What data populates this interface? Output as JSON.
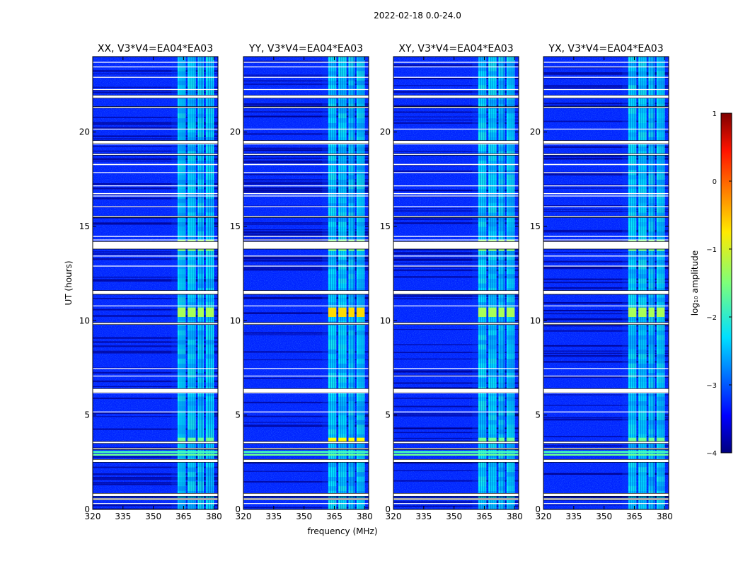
{
  "chart_data": {
    "type": "heatmap",
    "suptitle": "2022-02-18 0.0-24.0",
    "xlabel": "frequency (MHz)",
    "ylabel": "UT (hours)",
    "xlim": [
      320,
      382
    ],
    "ylim": [
      0,
      24
    ],
    "xticks": [
      320,
      335,
      350,
      365,
      380
    ],
    "yticks": [
      0,
      5,
      10,
      15,
      20
    ],
    "panels": [
      {
        "title": "XX, V3*V4=EA04*EA03",
        "pol": "XX"
      },
      {
        "title": "YY, V3*V4=EA04*EA03",
        "pol": "YY"
      },
      {
        "title": "XY, V3*V4=EA04*EA03",
        "pol": "XY"
      },
      {
        "title": "YX, V3*V4=EA04*EA03",
        "pol": "YX"
      }
    ],
    "colorbar": {
      "label": "log₁₀ amplitude",
      "min": -4,
      "max": 1,
      "ticks": [
        1,
        0,
        -1,
        -2,
        -3,
        -4
      ],
      "tick_labels": [
        "1",
        "0",
        "−1",
        "−2",
        "−3",
        "−4"
      ],
      "colormap": "jet"
    },
    "background_log10_amplitude": -3.2,
    "signal_band_mhz": [
      362,
      380
    ],
    "signal_subbands_mhz": [
      [
        362,
        366
      ],
      [
        367,
        371
      ],
      [
        372,
        375
      ],
      [
        376,
        380
      ]
    ],
    "flagged_ut_hours": [
      [
        0.5,
        0.6
      ],
      [
        0.7,
        0.85
      ],
      [
        2.5,
        2.65
      ],
      [
        3.2,
        3.25
      ],
      [
        3.5,
        3.6
      ],
      [
        6.2,
        6.4
      ],
      [
        9.8,
        9.9
      ],
      [
        11.4,
        11.6
      ],
      [
        13.8,
        14.2
      ],
      [
        15.5,
        15.55
      ],
      [
        18.8,
        18.85
      ],
      [
        19.4,
        19.55
      ],
      [
        21.3,
        21.35
      ],
      [
        21.8,
        21.95
      ]
    ],
    "bright_events": [
      {
        "ut": [
          3.0,
          3.1
        ],
        "band_mhz": [
          320,
          382
        ],
        "log10_amp": -1.8
      },
      {
        "ut": [
          2.85,
          2.95
        ],
        "band_mhz": [
          320,
          382
        ],
        "log10_amp": -1.6
      },
      {
        "ut": [
          10.2,
          10.7
        ],
        "band_mhz": [
          362,
          380
        ],
        "log10_amp": -1.3
      },
      {
        "ut": [
          13.7,
          14.3
        ],
        "band_mhz": [
          362,
          380
        ],
        "log10_amp": -1.4
      },
      {
        "ut": [
          3.6,
          3.8
        ],
        "band_mhz": [
          362,
          380
        ],
        "log10_amp": -1.6
      }
    ]
  }
}
